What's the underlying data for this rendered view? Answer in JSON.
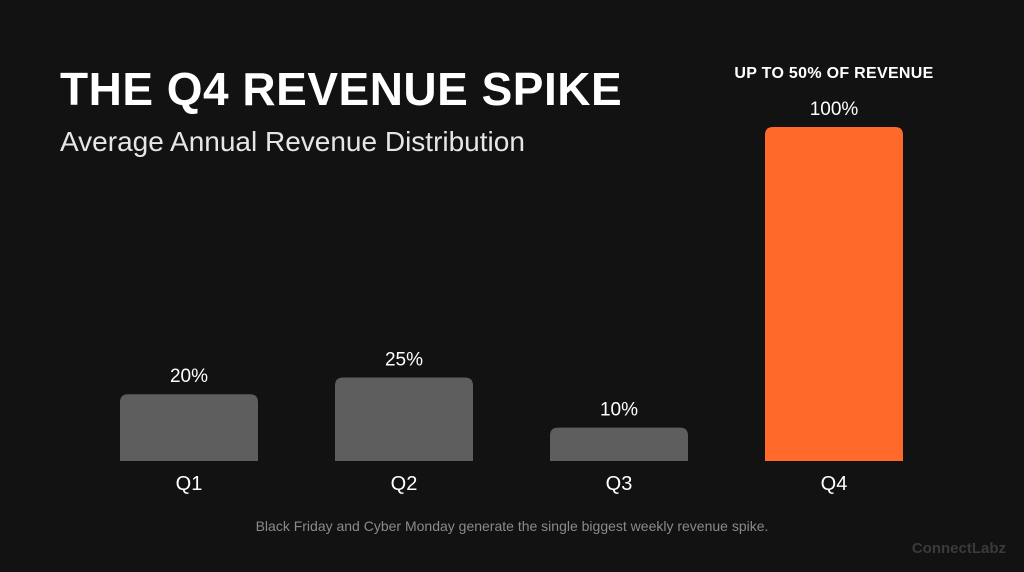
{
  "colors": {
    "background": "#121212",
    "bar_default": "#5e5e5e",
    "bar_highlight": "#ff6a2a",
    "text": "#ffffff",
    "footnote": "#8a8a8a",
    "brand": "#3a3a3a"
  },
  "chart_data": {
    "type": "bar",
    "title": "THE Q4 REVENUE SPIKE",
    "subtitle": "Average Annual Revenue Distribution",
    "categories": [
      "Q1",
      "Q2",
      "Q3",
      "Q4"
    ],
    "values": [
      20,
      25,
      10,
      100
    ],
    "value_labels": [
      "20%",
      "25%",
      "10%",
      "100%"
    ],
    "highlight": "Q4",
    "annotation": "UP TO 50% OF REVENUE",
    "ylim": [
      0,
      100
    ],
    "grid": false,
    "legend": "none"
  },
  "footnote": "Black Friday and Cyber Monday generate the single biggest weekly revenue spike.",
  "brand": "ConnectLabz"
}
